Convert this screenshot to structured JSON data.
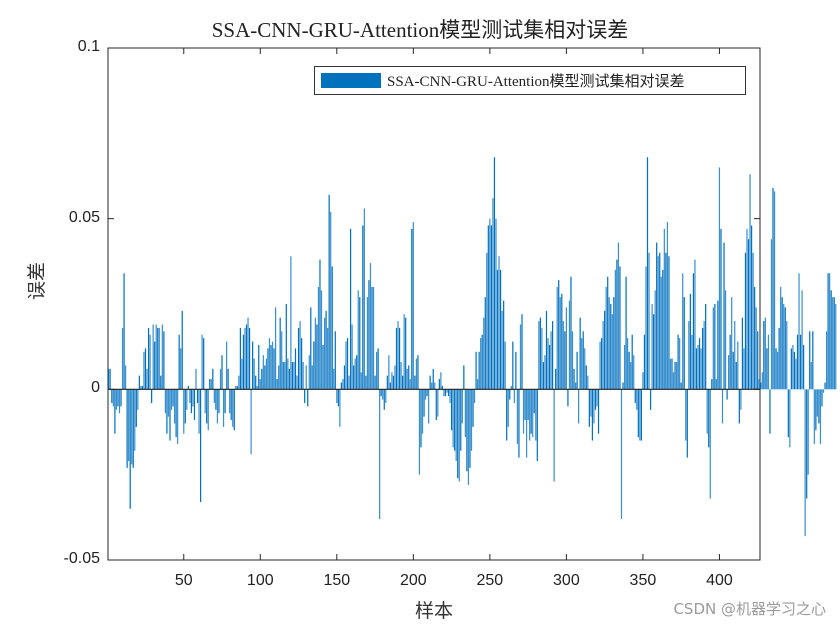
{
  "chart_data": {
    "type": "bar",
    "title": "SSA-CNN-GRU-Attention模型测试集相对误差",
    "xlabel": "样本",
    "ylabel": "误差",
    "legend": [
      "SSA-CNN-GRU-Attention模型测试集相对误差"
    ],
    "legend_position": "northeast",
    "xlim": [
      0.5,
      426.5
    ],
    "ylim": [
      -0.05,
      0.1
    ],
    "xticks": [
      50,
      100,
      150,
      200,
      250,
      300,
      350,
      400
    ],
    "yticks": [
      -0.05,
      0,
      0.05,
      0.1
    ],
    "ytick_labels": [
      "-0.05",
      "0",
      "0.05",
      "0.1"
    ],
    "grid": false,
    "bar_color": "#0072BD",
    "series": [
      {
        "name": "SSA-CNN-GRU-Attention模型测试集相对误差",
        "values": [
          0.006,
          0.006,
          -0.004,
          -0.005,
          -0.013,
          -0.006,
          -0.005,
          -0.007,
          -0.005,
          0.018,
          0.034,
          0.007,
          -0.023,
          -0.021,
          -0.035,
          -0.022,
          -0.023,
          -0.018,
          -0.011,
          -0.006,
          0.004,
          0.001,
          0.001,
          0.011,
          0.012,
          0.006,
          0.018,
          0.016,
          -0.004,
          0.019,
          0.014,
          0.019,
          0.018,
          0.018,
          0.004,
          0.019,
          0.017,
          -0.007,
          -0.013,
          -0.008,
          -0.015,
          -0.006,
          -0.005,
          -0.01,
          -0.014,
          -0.016,
          0.016,
          0.012,
          0.023,
          -0.013,
          -0.01,
          -0.006,
          0.001,
          -0.004,
          -0.007,
          -0.005,
          -0.009,
          0.006,
          -0.004,
          -0.013,
          -0.033,
          0.016,
          0.015,
          -0.007,
          -0.01,
          -0.012,
          0.003,
          0.003,
          0.006,
          -0.004,
          -0.006,
          -0.01,
          -0.007,
          0.006,
          0.01,
          -0.011,
          -0.007,
          0.014,
          0.006,
          -0.007,
          -0.009,
          -0.011,
          -0.012,
          0.001,
          0.001,
          0.004,
          0.018,
          0.009,
          0.016,
          0.018,
          0.019,
          0.021,
          0.018,
          -0.019,
          0.014,
          0.009,
          0.004,
          0.001,
          0.013,
          0.003,
          0.006,
          0.01,
          0.007,
          0.009,
          0.012,
          0.015,
          0.013,
          0.014,
          0.012,
          0.024,
          0.003,
          0.007,
          0.021,
          0.017,
          0.008,
          0.008,
          0.025,
          0.009,
          0.006,
          0.039,
          0.008,
          0.008,
          0.012,
          0.004,
          0.018,
          0.02,
          0.015,
          0.008,
          -0.004,
          0.007,
          -0.005,
          0.01,
          0.024,
          0.007,
          0.014,
          0.021,
          0.019,
          0.03,
          0.038,
          0.029,
          0.013,
          0.021,
          0.023,
          0.018,
          0.057,
          0.052,
          0.036,
          0.006,
          0.017,
          -0.004,
          -0.005,
          -0.011,
          0.002,
          0.003,
          0.007,
          0.014,
          0.015,
          0.004,
          0.047,
          0.019,
          0.007,
          0.009,
          0.01,
          0.029,
          0.027,
          0.005,
          0.048,
          0.053,
          0.004,
          0.027,
          0.032,
          0.037,
          0.03,
          0.03,
          0.004,
          0.011,
          0.012,
          -0.038,
          -0.002,
          -0.003,
          -0.006,
          -0.004,
          0.004,
          0.01,
          0.002,
          0.005,
          0.004,
          0.007,
          0.018,
          0.02,
          0.018,
          0.008,
          0.004,
          0.022,
          0.021,
          0.006,
          0.007,
          0.003,
          0.047,
          0.049,
          0.004,
          0.009,
          0.01,
          -0.025,
          -0.017,
          -0.013,
          -0.008,
          -0.003,
          -0.002,
          -0.01,
          0.004,
          0.002,
          0.006,
          0.002,
          -0.009,
          -0.008,
          0.003,
          0.005,
          0.001,
          -0.002,
          -0.002,
          -0.001,
          -0.002,
          -0.004,
          -0.012,
          -0.017,
          -0.018,
          -0.021,
          -0.026,
          -0.027,
          -0.018,
          -0.01,
          0.007,
          -0.014,
          -0.024,
          -0.028,
          -0.023,
          -0.018,
          -0.011,
          -0.004,
          0.011,
          0.003,
          0.011,
          0.015,
          0.016,
          0.021,
          0.027,
          0.04,
          0.048,
          0.05,
          0.048,
          0.056,
          0.068,
          0.05,
          0.035,
          0.039,
          0.035,
          0.023,
          0.026,
          0.014,
          -0.015,
          -0.011,
          -0.003,
          0.001,
          0.014,
          -0.004,
          0.011,
          -0.016,
          -0.02,
          0.019,
          0.022,
          -0.013,
          -0.009,
          -0.02,
          -0.009,
          -0.015,
          -0.013,
          -0.014,
          -0.007,
          -0.015,
          -0.021,
          0.02,
          0.021,
          0.018,
          0.008,
          0.01,
          0.023,
          0.015,
          0.013,
          0.017,
          0.02,
          -0.027,
          0.006,
          0.03,
          0.032,
          0.027,
          0.028,
          0.02,
          0.017,
          0.024,
          -0.005,
          0.026,
          0.033,
          0.017,
          0.006,
          0.002,
          0.011,
          -0.01,
          0.021,
          0.015,
          0.017,
          0.012,
          0.007,
          0.004,
          -0.011,
          -0.008,
          -0.015,
          -0.01,
          -0.006,
          -0.005,
          -0.013,
          0.014,
          0.015,
          0.02,
          0.023,
          0.03,
          0.033,
          0.027,
          0.025,
          0.022,
          0.027,
          0.035,
          0.038,
          0.043,
          0.036,
          -0.038,
          0.002,
          0.013,
          0.033,
          0.015,
          0.011,
          0.008,
          0.016,
          0.01,
          -0.004,
          -0.006,
          -0.014,
          -0.015,
          -0.015,
          0.005,
          0.016,
          0.036,
          0.068,
          0.04,
          -0.006,
          0.025,
          0.022,
          0.029,
          0.043,
          0.039,
          0.04,
          0.033,
          0.035,
          0.047,
          0.04,
          0.049,
          0.039,
          0.009,
          0.009,
          0.005,
          0.008,
          0.008,
          0.016,
          0.015,
          0.002,
          0.034,
          0.027,
          -0.015,
          -0.02,
          0.02,
          0.028,
          0.016,
          0.034,
          0.038,
          0.012,
          0.013,
          0.015,
          0.012,
          0.018,
          0.02,
          0.025,
          -0.013,
          -0.017,
          -0.032,
          0.003,
          0.024,
          0.025,
          0.003,
          0.026,
          0.065,
          0.047,
          -0.01,
          0.043,
          0.029,
          -0.003,
          0.01,
          0.016,
          0.027,
          0.011,
          0.02,
          0.008,
          0.014,
          -0.01,
          -0.006,
          0.021,
          0.012,
          0.04,
          0.047,
          0.044,
          0.063,
          0.048,
          0.04,
          0.03,
          0.024,
          0.017,
          0.003,
          0.002,
          0.005,
          0.02,
          0.021,
          0.012,
          0.016,
          -0.013,
          0.044,
          0.059,
          0.058,
          0.012,
          0.011,
          0.018,
          0.03,
          0.027,
          0.025,
          0.024,
          0.02,
          -0.014,
          -0.017,
          0.012,
          0.013,
          0.011,
          0.009,
          0.016,
          0.034,
          0.016,
          0.029,
          0.013,
          -0.043,
          -0.032,
          -0.025,
          0.017,
          0.008,
          0.017,
          -0.016,
          -0.012,
          -0.008,
          -0.01,
          -0.016,
          -0.005,
          -0.001,
          0.002,
          0.017,
          0.034,
          0.034,
          0.029,
          0.027,
          0.027,
          0.025
        ]
      }
    ]
  },
  "watermark": "CSDN @机器学习之心"
}
